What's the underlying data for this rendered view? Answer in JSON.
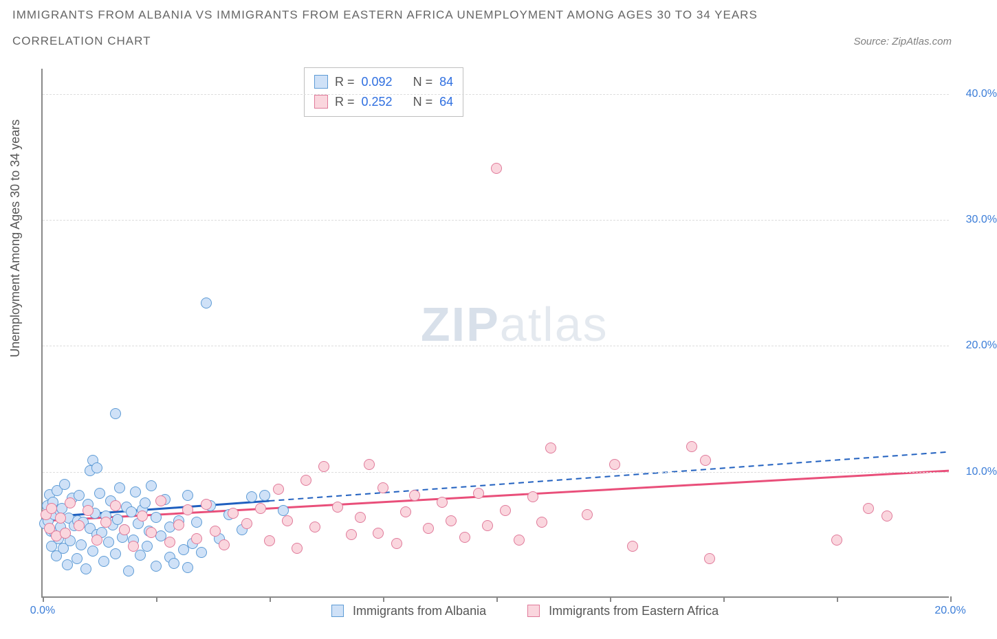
{
  "title_line1": "IMMIGRANTS FROM ALBANIA VS IMMIGRANTS FROM EASTERN AFRICA UNEMPLOYMENT AMONG AGES 30 TO 34 YEARS",
  "title_line2": "CORRELATION CHART",
  "source_label": "Source: ZipAtlas.com",
  "y_axis_label": "Unemployment Among Ages 30 to 34 years",
  "watermark_strong": "ZIP",
  "watermark_light": "atlas",
  "chart": {
    "type": "scatter",
    "background_color": "#ffffff",
    "grid_color": "#dddddd",
    "axis_color": "#888888",
    "text_color": "#555555",
    "tick_label_color": "#3b7dd8",
    "xlim": [
      0,
      20
    ],
    "ylim": [
      0,
      42
    ],
    "xticks": [
      0,
      2.5,
      5,
      7.5,
      10,
      12.5,
      15,
      17.5,
      20
    ],
    "xtick_labels": {
      "0": "0.0%",
      "20": "20.0%"
    },
    "yticks": [
      10,
      20,
      30,
      40
    ],
    "ytick_labels": {
      "10": "10.0%",
      "20": "20.0%",
      "30": "30.0%",
      "40": "40.0%"
    },
    "point_radius": 8,
    "point_stroke_width": 1.5,
    "series": [
      {
        "name": "Immigrants from Albania",
        "legend_label": "Immigrants from Albania",
        "fill": "#cfe1f7",
        "stroke": "#5d9bd5",
        "trend_color": "#1f5fbf",
        "trend_dash_after": 5.0,
        "trend": {
          "y_at_x0": 6.3,
          "y_at_xmax": 11.5
        },
        "R": "0.092",
        "N": "84",
        "points": [
          [
            0.05,
            5.8
          ],
          [
            0.1,
            7.2
          ],
          [
            0.12,
            6.0
          ],
          [
            0.15,
            8.1
          ],
          [
            0.18,
            5.2
          ],
          [
            0.2,
            4.0
          ],
          [
            0.22,
            7.5
          ],
          [
            0.25,
            6.5
          ],
          [
            0.28,
            5.0
          ],
          [
            0.3,
            3.2
          ],
          [
            0.32,
            8.4
          ],
          [
            0.35,
            4.6
          ],
          [
            0.38,
            6.8
          ],
          [
            0.4,
            5.5
          ],
          [
            0.42,
            7.0
          ],
          [
            0.45,
            3.8
          ],
          [
            0.48,
            8.9
          ],
          [
            0.5,
            5.0
          ],
          [
            0.55,
            2.5
          ],
          [
            0.58,
            6.2
          ],
          [
            0.6,
            4.4
          ],
          [
            0.65,
            7.8
          ],
          [
            0.7,
            5.6
          ],
          [
            0.75,
            3.0
          ],
          [
            0.78,
            6.0
          ],
          [
            0.8,
            8.0
          ],
          [
            0.85,
            4.1
          ],
          [
            0.9,
            5.9
          ],
          [
            0.95,
            2.2
          ],
          [
            1.0,
            7.3
          ],
          [
            1.05,
            5.4
          ],
          [
            1.05,
            10.0
          ],
          [
            1.1,
            3.6
          ],
          [
            1.1,
            10.8
          ],
          [
            1.15,
            6.6
          ],
          [
            1.2,
            10.2
          ],
          [
            1.2,
            4.9
          ],
          [
            1.25,
            8.2
          ],
          [
            1.3,
            5.1
          ],
          [
            1.35,
            2.8
          ],
          [
            1.4,
            6.4
          ],
          [
            1.45,
            4.3
          ],
          [
            1.5,
            7.6
          ],
          [
            1.55,
            5.7
          ],
          [
            1.6,
            3.4
          ],
          [
            1.6,
            14.5
          ],
          [
            1.65,
            6.1
          ],
          [
            1.7,
            8.6
          ],
          [
            1.75,
            4.7
          ],
          [
            1.8,
            5.3
          ],
          [
            1.85,
            7.1
          ],
          [
            1.9,
            2.0
          ],
          [
            1.95,
            6.7
          ],
          [
            2.0,
            4.5
          ],
          [
            2.05,
            8.3
          ],
          [
            2.1,
            5.8
          ],
          [
            2.15,
            3.3
          ],
          [
            2.2,
            6.9
          ],
          [
            2.25,
            7.4
          ],
          [
            2.3,
            4.0
          ],
          [
            2.35,
            5.2
          ],
          [
            2.4,
            8.8
          ],
          [
            2.5,
            2.4
          ],
          [
            2.5,
            6.3
          ],
          [
            2.6,
            4.8
          ],
          [
            2.7,
            7.7
          ],
          [
            2.8,
            3.1
          ],
          [
            2.8,
            5.5
          ],
          [
            2.9,
            2.6
          ],
          [
            3.0,
            6.0
          ],
          [
            3.1,
            3.7
          ],
          [
            3.2,
            8.0
          ],
          [
            3.2,
            2.3
          ],
          [
            3.3,
            4.2
          ],
          [
            3.4,
            5.9
          ],
          [
            3.5,
            3.5
          ],
          [
            3.6,
            23.3
          ],
          [
            3.7,
            7.2
          ],
          [
            3.9,
            4.6
          ],
          [
            4.1,
            6.5
          ],
          [
            4.4,
            5.3
          ],
          [
            4.6,
            7.9
          ],
          [
            4.9,
            8.0
          ],
          [
            5.3,
            6.8
          ]
        ]
      },
      {
        "name": "Immigrants from Eastern Africa",
        "legend_label": "Immigrants from Eastern Africa",
        "fill": "#fad6de",
        "stroke": "#e07a9a",
        "trend_color": "#e94f7a",
        "trend_dash_after": null,
        "trend": {
          "y_at_x0": 6.0,
          "y_at_xmax": 10.0
        },
        "R": "0.252",
        "N": "64",
        "points": [
          [
            0.08,
            6.5
          ],
          [
            0.15,
            5.4
          ],
          [
            0.2,
            7.0
          ],
          [
            0.3,
            4.8
          ],
          [
            0.4,
            6.2
          ],
          [
            0.5,
            5.0
          ],
          [
            0.6,
            7.4
          ],
          [
            0.8,
            5.6
          ],
          [
            1.0,
            6.8
          ],
          [
            1.2,
            4.5
          ],
          [
            1.4,
            5.9
          ],
          [
            1.6,
            7.2
          ],
          [
            1.8,
            5.3
          ],
          [
            2.0,
            4.0
          ],
          [
            2.2,
            6.4
          ],
          [
            2.4,
            5.1
          ],
          [
            2.6,
            7.6
          ],
          [
            2.8,
            4.3
          ],
          [
            3.0,
            5.7
          ],
          [
            3.2,
            6.9
          ],
          [
            3.4,
            4.6
          ],
          [
            3.6,
            7.3
          ],
          [
            3.8,
            5.2
          ],
          [
            4.0,
            4.1
          ],
          [
            4.2,
            6.6
          ],
          [
            4.5,
            5.8
          ],
          [
            4.8,
            7.0
          ],
          [
            5.0,
            4.4
          ],
          [
            5.2,
            8.5
          ],
          [
            5.4,
            6.0
          ],
          [
            5.6,
            3.8
          ],
          [
            5.8,
            9.2
          ],
          [
            6.0,
            5.5
          ],
          [
            6.2,
            10.3
          ],
          [
            6.5,
            7.1
          ],
          [
            6.8,
            4.9
          ],
          [
            7.0,
            6.3
          ],
          [
            7.2,
            10.5
          ],
          [
            7.4,
            5.0
          ],
          [
            7.5,
            8.6
          ],
          [
            7.8,
            4.2
          ],
          [
            8.0,
            6.7
          ],
          [
            8.2,
            8.0
          ],
          [
            8.5,
            5.4
          ],
          [
            8.8,
            7.5
          ],
          [
            9.0,
            6.0
          ],
          [
            9.3,
            4.7
          ],
          [
            9.6,
            8.2
          ],
          [
            9.8,
            5.6
          ],
          [
            10.0,
            34.0
          ],
          [
            10.2,
            6.8
          ],
          [
            10.5,
            4.5
          ],
          [
            10.8,
            7.9
          ],
          [
            11.0,
            5.9
          ],
          [
            11.2,
            11.8
          ],
          [
            12.0,
            6.5
          ],
          [
            12.6,
            10.5
          ],
          [
            13.0,
            4.0
          ],
          [
            14.3,
            11.9
          ],
          [
            14.6,
            10.8
          ],
          [
            14.7,
            3.0
          ],
          [
            17.5,
            4.5
          ],
          [
            18.2,
            7.0
          ],
          [
            18.6,
            6.4
          ]
        ]
      }
    ]
  },
  "stats_box": {
    "R_label": "R =",
    "N_label": "N ="
  }
}
